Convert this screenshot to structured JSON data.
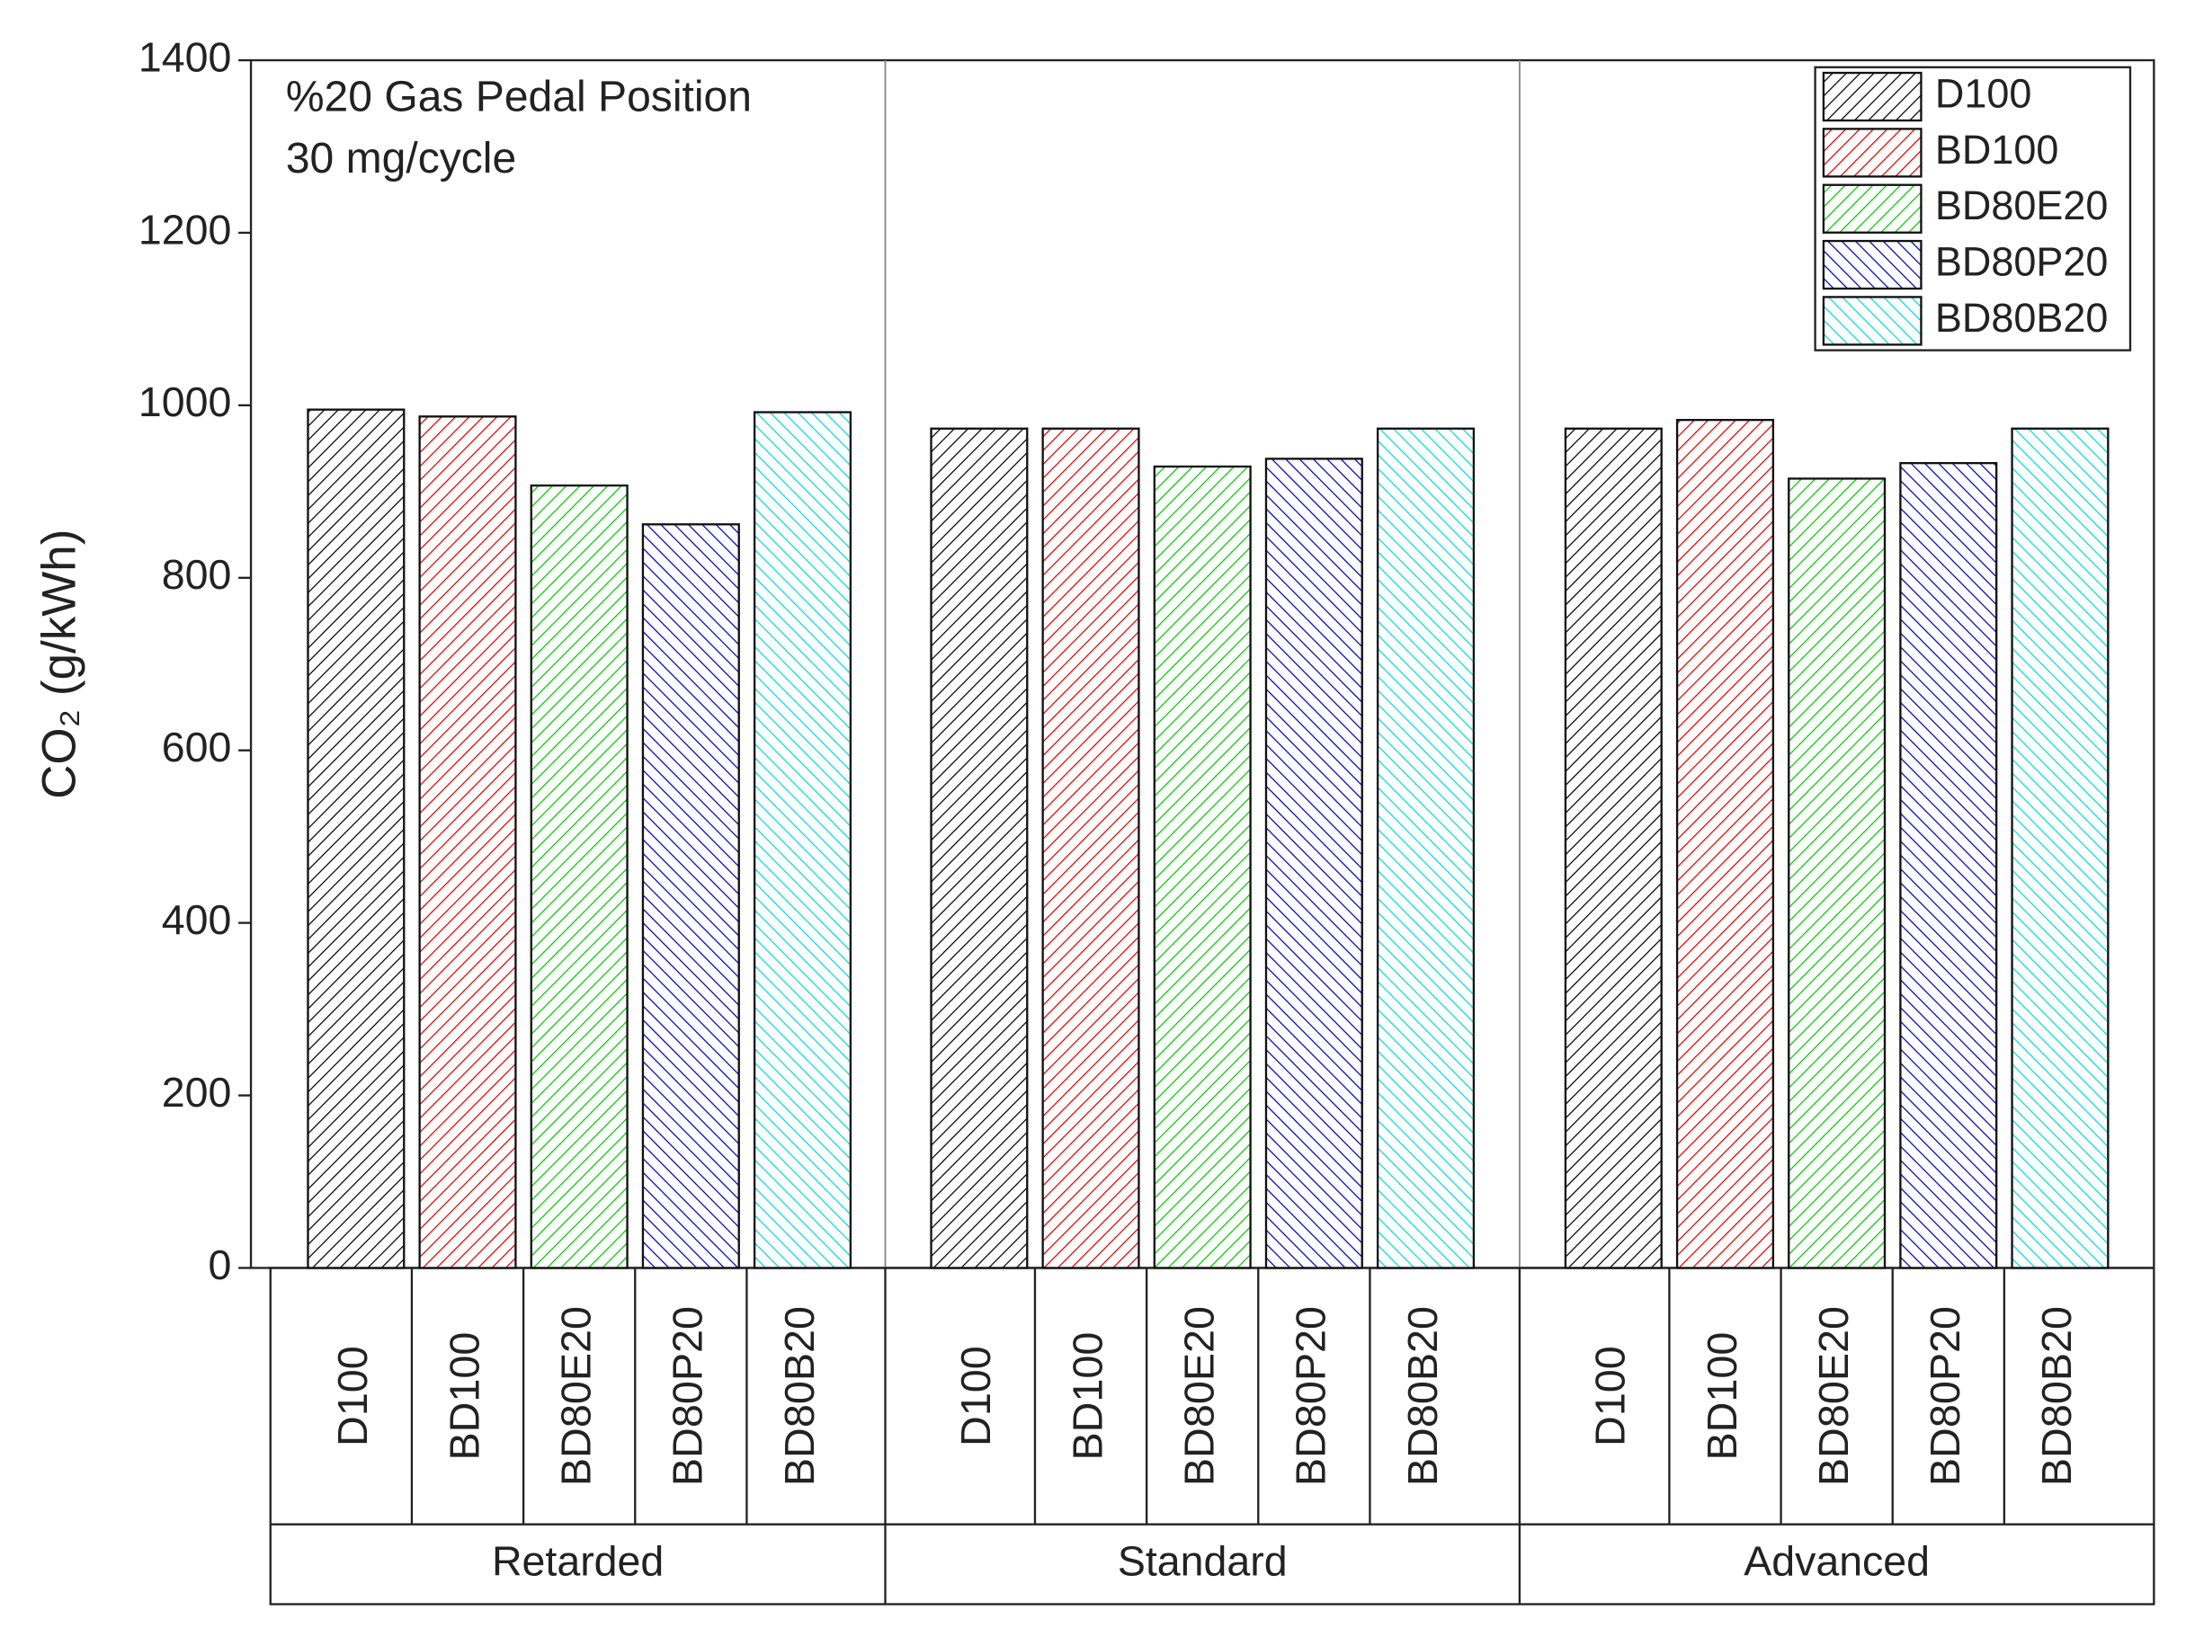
{
  "chart_data": {
    "type": "bar",
    "annotations": [
      "%20 Gas Pedal Position",
      "30 mg/cycle"
    ],
    "ylabel": "CO₂ (g/kWh)",
    "categories": [
      "Retarded",
      "Standard",
      "Advanced"
    ],
    "series": [
      {
        "name": "D100",
        "color": "#000000",
        "hatch": "/",
        "values": [
          995,
          973,
          973
        ]
      },
      {
        "name": "BD100",
        "color": "#e00000",
        "hatch": "/",
        "values": [
          987,
          973,
          983
        ]
      },
      {
        "name": "BD80E20",
        "color": "#00cc00",
        "hatch": "/",
        "values": [
          907,
          929,
          915
        ]
      },
      {
        "name": "BD80P20",
        "color": "#0000bb",
        "hatch": "\\",
        "values": [
          862,
          938,
          933
        ]
      },
      {
        "name": "BD80B20",
        "color": "#00dddd",
        "hatch": "\\",
        "values": [
          992,
          973,
          973
        ]
      }
    ],
    "ylim": [
      0,
      1400
    ],
    "yticks": [
      0,
      200,
      400,
      600,
      800,
      1000,
      1200,
      1400
    ],
    "legend": "upper right"
  }
}
